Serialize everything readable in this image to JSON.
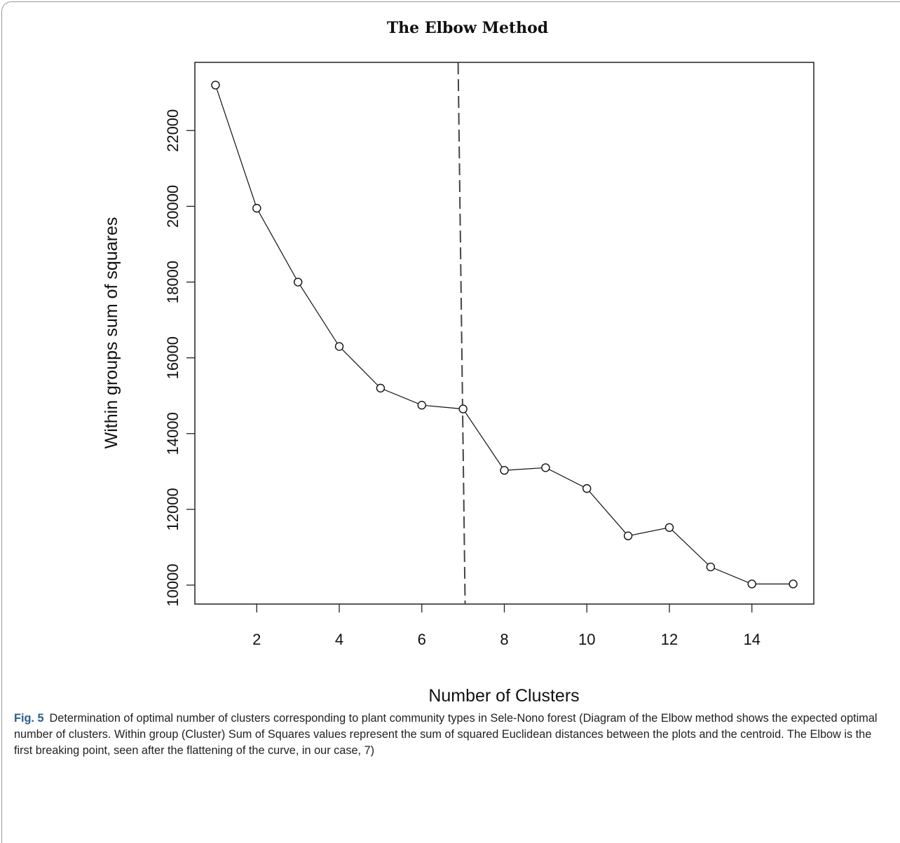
{
  "figure": {
    "label": "Fig. 5",
    "caption": "Determination of optimal number of clusters corresponding to plant community types in Sele-Nono forest (Diagram of the Elbow method shows the expected optimal number of clusters. Within group (Cluster) Sum of Squares values represent the sum of squared Euclidean distances between the plots and the centroid. The Elbow is the first breaking point, seen after the flattening of the curve, in our case, 7)"
  },
  "chart_data": {
    "type": "line",
    "title": "The Elbow Method",
    "xlabel": "Number of Clusters",
    "ylabel": "Within groups sum of squares",
    "x": [
      1,
      2,
      3,
      4,
      5,
      6,
      7,
      8,
      9,
      10,
      11,
      12,
      13,
      14,
      15
    ],
    "series": [
      {
        "values": [
          23200,
          19950,
          18000,
          16300,
          15200,
          14750,
          14650,
          13030,
          13100,
          12550,
          11300,
          11520,
          10480,
          10030,
          10030
        ]
      }
    ],
    "xlim": [
      0.5,
      15.5
    ],
    "ylim": [
      9500,
      23800
    ],
    "xticks": [
      2,
      4,
      6,
      8,
      10,
      12,
      14
    ],
    "yticks": [
      10000,
      12000,
      14000,
      16000,
      18000,
      20000,
      22000
    ],
    "reference_line": {
      "x": 7.05,
      "style": "dashed"
    },
    "markers": "open-circle",
    "grid": false
  }
}
